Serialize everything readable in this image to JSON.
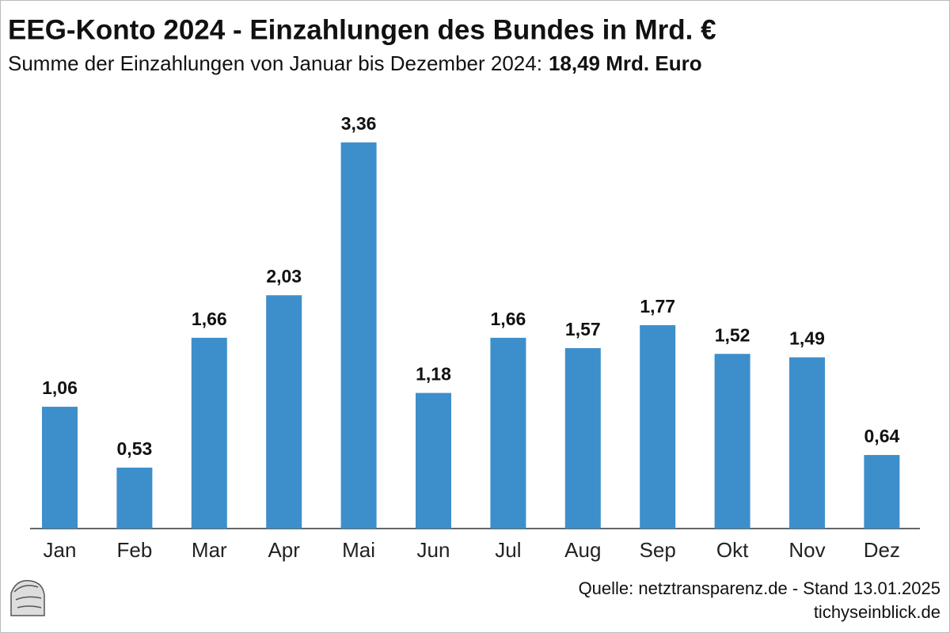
{
  "chart_data": {
    "type": "bar",
    "title": "EEG-Konto 2024 - Einzahlungen des Bundes in Mrd. €",
    "subtitle": "Summe der Einzahlungen von Januar bis Dezember 2024:",
    "subtitle_total": "18,49 Mrd. Euro",
    "categories": [
      "Jan",
      "Feb",
      "Mar",
      "Apr",
      "Mai",
      "Jun",
      "Jul",
      "Aug",
      "Sep",
      "Okt",
      "Nov",
      "Dez"
    ],
    "values": [
      1.06,
      0.53,
      1.66,
      2.03,
      3.36,
      1.18,
      1.66,
      1.57,
      1.77,
      1.52,
      1.49,
      0.64
    ],
    "value_labels": [
      "1,06",
      "0,53",
      "1,66",
      "2,03",
      "3,36",
      "1,18",
      "1,66",
      "1,57",
      "1,77",
      "1,52",
      "1,49",
      "0,64"
    ],
    "color": "#3d8fcb",
    "source": "Quelle: netztransparenz.de - Stand 13.01.2025",
    "website": "tichyseinblick.de"
  }
}
